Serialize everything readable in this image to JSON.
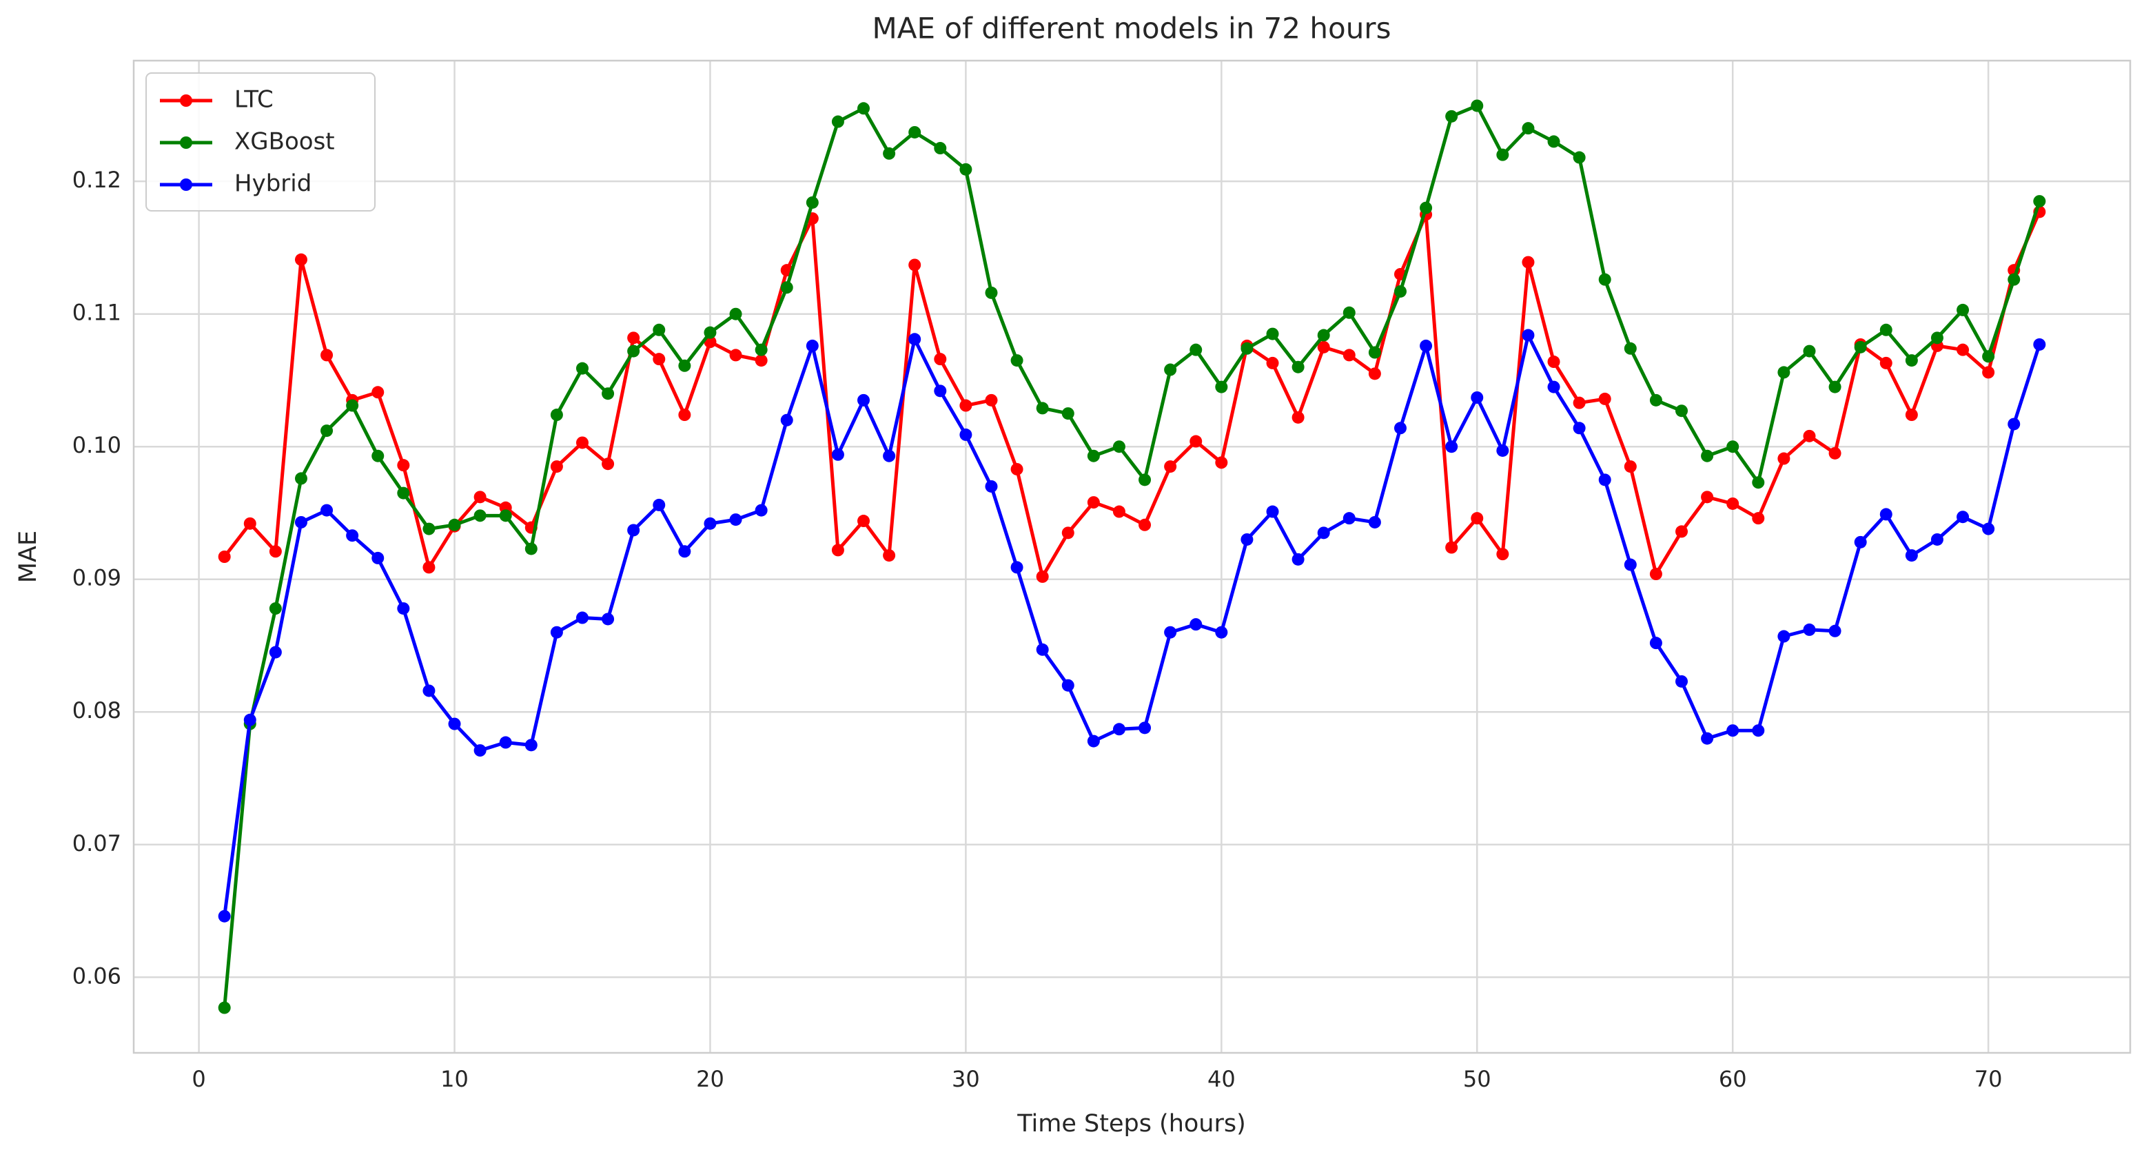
{
  "chart_data": {
    "type": "line",
    "title": "MAE of different models in 72 hours",
    "x_label": "Time Steps (hours)",
    "y_label": "MAE",
    "x": [
      1,
      2,
      3,
      4,
      5,
      6,
      7,
      8,
      9,
      10,
      11,
      12,
      13,
      14,
      15,
      16,
      17,
      18,
      19,
      20,
      21,
      22,
      23,
      24,
      25,
      26,
      27,
      28,
      29,
      30,
      31,
      32,
      33,
      34,
      35,
      36,
      37,
      38,
      39,
      40,
      41,
      42,
      43,
      44,
      45,
      46,
      47,
      48,
      49,
      50,
      51,
      52,
      53,
      54,
      55,
      56,
      57,
      58,
      59,
      60,
      61,
      62,
      63,
      64,
      65,
      66,
      67,
      68,
      69,
      70,
      71,
      72
    ],
    "series": [
      {
        "name": "LTC",
        "color": "#ff0000",
        "values": [
          0.0917,
          0.0942,
          0.0921,
          0.1141,
          0.1069,
          0.1035,
          0.1041,
          0.0986,
          0.0909,
          0.094,
          0.0962,
          0.0954,
          0.0939,
          0.0985,
          0.1003,
          0.0987,
          0.1082,
          0.1066,
          0.1024,
          0.1079,
          0.1069,
          0.1065,
          0.1133,
          0.1172,
          0.0922,
          0.0944,
          0.0918,
          0.1137,
          0.1066,
          0.1031,
          0.1035,
          0.0983,
          0.0902,
          0.0935,
          0.0958,
          0.0951,
          0.0941,
          0.0985,
          0.1004,
          0.0988,
          0.1076,
          0.1063,
          0.1022,
          0.1075,
          0.1069,
          0.1055,
          0.113,
          0.1175,
          0.0924,
          0.0946,
          0.0919,
          0.1139,
          0.1064,
          0.1033,
          0.1036,
          0.0985,
          0.0904,
          0.0936,
          0.0962,
          0.0957,
          0.0946,
          0.0991,
          0.1008,
          0.0995,
          0.1077,
          0.1063,
          0.1024,
          0.1076,
          0.1073,
          0.1056,
          0.1133,
          0.1177
        ]
      },
      {
        "name": "XGBoost",
        "color": "#008000",
        "values": [
          0.0577,
          0.0791,
          0.0878,
          0.0976,
          0.1012,
          0.1031,
          0.0993,
          0.0965,
          0.0938,
          0.0941,
          0.0948,
          0.0948,
          0.0923,
          0.1024,
          0.1059,
          0.104,
          0.1072,
          0.1088,
          0.1061,
          0.1086,
          0.11,
          0.1073,
          0.112,
          0.1184,
          0.1245,
          0.1255,
          0.1221,
          0.1237,
          0.1225,
          0.1209,
          0.1116,
          0.1065,
          0.1029,
          0.1025,
          0.0993,
          0.1,
          0.0975,
          0.1058,
          0.1073,
          0.1045,
          0.1074,
          0.1085,
          0.106,
          0.1084,
          0.1101,
          0.1071,
          0.1117,
          0.118,
          0.1249,
          0.1257,
          0.122,
          0.124,
          0.123,
          0.1218,
          0.1126,
          0.1074,
          0.1035,
          0.1027,
          0.0993,
          0.1,
          0.0973,
          0.1056,
          0.1072,
          0.1045,
          0.1075,
          0.1088,
          0.1065,
          0.1082,
          0.1103,
          0.1068,
          0.1126,
          0.1185
        ]
      },
      {
        "name": "Hybrid",
        "color": "#0000ff",
        "values": [
          0.0646,
          0.0794,
          0.0845,
          0.0943,
          0.0952,
          0.0933,
          0.0916,
          0.0878,
          0.0816,
          0.0791,
          0.0771,
          0.0777,
          0.0775,
          0.086,
          0.0871,
          0.087,
          0.0937,
          0.0956,
          0.0921,
          0.0942,
          0.0945,
          0.0952,
          0.102,
          0.1076,
          0.0994,
          0.1035,
          0.0993,
          0.1081,
          0.1042,
          0.1009,
          0.097,
          0.0909,
          0.0847,
          0.082,
          0.0778,
          0.0787,
          0.0788,
          0.086,
          0.0866,
          0.086,
          0.093,
          0.0951,
          0.0915,
          0.0935,
          0.0946,
          0.0943,
          0.1014,
          0.1076,
          0.1,
          0.1037,
          0.0997,
          0.1084,
          0.1045,
          0.1014,
          0.0975,
          0.0911,
          0.0852,
          0.0823,
          0.078,
          0.0786,
          0.0786,
          0.0857,
          0.0862,
          0.0861,
          0.0928,
          0.0949,
          0.0918,
          0.093,
          0.0947,
          0.0938,
          0.1017,
          0.1077
        ]
      }
    ],
    "xlim": [
      -2.55,
      75.55
    ],
    "xticks": [
      0,
      10,
      20,
      30,
      40,
      50,
      60,
      70
    ],
    "ylim": [
      0.0543,
      0.1291
    ],
    "yticks": [
      0.06,
      0.07,
      0.08,
      0.09,
      {
        "value": 0.1,
        "label": "0.10"
      },
      0.11,
      0.12
    ],
    "grid": true,
    "legend": "upper left",
    "markers": true
  }
}
